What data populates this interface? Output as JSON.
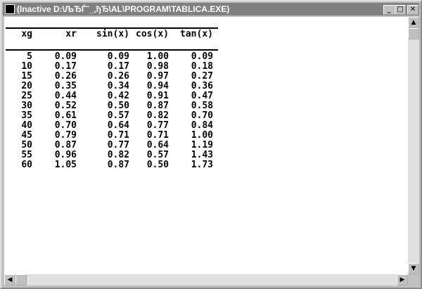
{
  "window": {
    "title": "(Inactive D:\\ЉЂЃ˜_‚ђЂ\\AL\\PROGRAM\\TABLICA.EXE)"
  },
  "table": {
    "columns": [
      "xg",
      "xr",
      "sin(x)",
      "cos(x)",
      "tan(x)"
    ],
    "rows": [
      [
        "5",
        "0.09",
        "0.09",
        "1.00",
        "0.09"
      ],
      [
        "10",
        "0.17",
        "0.17",
        "0.98",
        "0.18"
      ],
      [
        "15",
        "0.26",
        "0.26",
        "0.97",
        "0.27"
      ],
      [
        "20",
        "0.35",
        "0.34",
        "0.94",
        "0.36"
      ],
      [
        "25",
        "0.44",
        "0.42",
        "0.91",
        "0.47"
      ],
      [
        "30",
        "0.52",
        "0.50",
        "0.87",
        "0.58"
      ],
      [
        "35",
        "0.61",
        "0.57",
        "0.82",
        "0.70"
      ],
      [
        "40",
        "0.70",
        "0.64",
        "0.77",
        "0.84"
      ],
      [
        "45",
        "0.79",
        "0.71",
        "0.71",
        "1.00"
      ],
      [
        "50",
        "0.87",
        "0.77",
        "0.64",
        "1.19"
      ],
      [
        "55",
        "0.96",
        "0.82",
        "0.57",
        "1.43"
      ],
      [
        "60",
        "1.05",
        "0.87",
        "0.50",
        "1.73"
      ]
    ]
  }
}
